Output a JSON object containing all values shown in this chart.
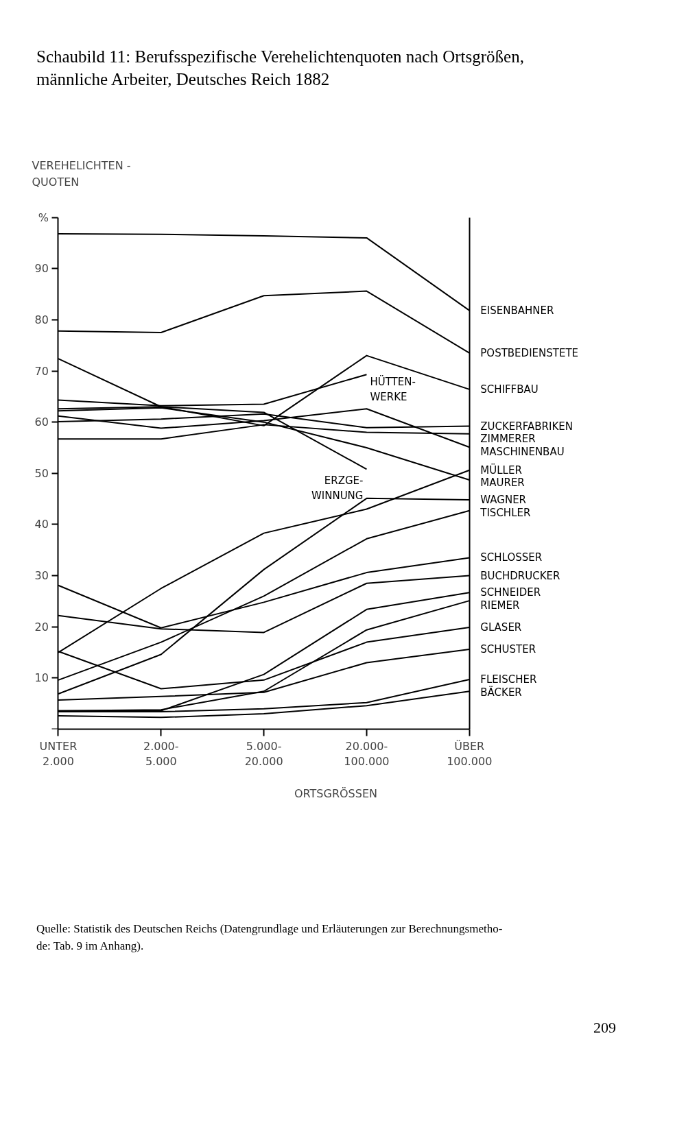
{
  "chart_data": {
    "type": "line",
    "title": "Schaubild 11: Berufsspezifische Verehelichtenquoten nach Ortsgrößen,\nmännliche Arbeiter, Deutsches Reich 1882",
    "xlabel": "ORTSGRÖSSEN",
    "ylabel": "VEREHELICHTEN -\nQUOTEN",
    "categories": [
      "UNTER\n2.000",
      "2.000-\n5.000",
      "5.000-\n20.000",
      "20.000-\n100.000",
      "ÜBER\n100.000"
    ],
    "ylim": [
      0,
      100
    ],
    "yticks": [
      {
        "value": 0,
        "label": null
      },
      10,
      20,
      30,
      40,
      50,
      60,
      70,
      80,
      90,
      {
        "value": 100,
        "label": "%"
      }
    ],
    "grid": false,
    "legend": false,
    "marker": "none",
    "line_style": "solid",
    "series": [
      {
        "name": "EISENBAHNER",
        "color": "#000000",
        "values": [
          96.8,
          96.7,
          96.4,
          96.0,
          81.8
        ]
      },
      {
        "name": "POSTBEDIENSTETE",
        "color": "#000000",
        "values": [
          77.8,
          77.5,
          84.7,
          85.6,
          73.5
        ]
      },
      {
        "name": "SCHIFFBAU",
        "color": "#000000",
        "values": [
          62.6,
          63.0,
          59.3,
          73.0,
          66.4
        ]
      },
      {
        "name": "HÜTTEN-\nWERKE",
        "color": "#000000",
        "values": [
          64.3,
          63.2,
          63.5,
          69.3,
          null
        ]
      },
      {
        "name": "ZUCKERFABRIKEN",
        "color": "#000000",
        "values": [
          60.1,
          60.6,
          61.6,
          58.9,
          59.2
        ]
      },
      {
        "name": "ZIMMERER",
        "color": "#000000",
        "values": [
          56.7,
          56.7,
          59.5,
          58.0,
          57.7
        ]
      },
      {
        "name": "MASCHINENBAU",
        "color": "#000000",
        "values": [
          61.2,
          58.8,
          60.3,
          62.6,
          55.1
        ]
      },
      {
        "name": "ERZGE-\nWINNUNG",
        "color": "#000000",
        "values": [
          72.4,
          63.0,
          61.9,
          50.8,
          null
        ]
      },
      {
        "name": "MÜLLER",
        "color": "#000000",
        "values": [
          15.0,
          27.5,
          38.3,
          43.0,
          50.6
        ]
      },
      {
        "name": "MAURER",
        "color": "#000000",
        "values": [
          62.2,
          62.8,
          60.0,
          55.0,
          48.7
        ]
      },
      {
        "name": "WAGNER",
        "color": "#000000",
        "values": [
          6.9,
          14.6,
          31.2,
          45.1,
          44.8
        ]
      },
      {
        "name": "TISCHLER",
        "color": "#000000",
        "values": [
          9.6,
          17.0,
          26.0,
          37.2,
          42.7
        ]
      },
      {
        "name": "SCHLOSSER",
        "color": "#000000",
        "values": [
          28.1,
          19.8,
          24.8,
          30.6,
          33.5
        ]
      },
      {
        "name": "BUCHDRUCKER",
        "color": "#000000",
        "values": [
          22.2,
          19.6,
          18.9,
          28.5,
          30.0
        ]
      },
      {
        "name": "SCHNEIDER",
        "color": "#000000",
        "values": [
          3.6,
          3.6,
          10.7,
          23.4,
          26.7
        ]
      },
      {
        "name": "RIEMER",
        "color": "#000000",
        "values": [
          3.6,
          3.8,
          7.4,
          19.4,
          25.1
        ]
      },
      {
        "name": "GLASER",
        "color": "#000000",
        "values": [
          15.2,
          7.9,
          9.6,
          17.0,
          19.9
        ]
      },
      {
        "name": "SCHUSTER",
        "color": "#000000",
        "values": [
          5.7,
          6.4,
          7.2,
          13.0,
          15.6
        ]
      },
      {
        "name": "FLEISCHER",
        "color": "#000000",
        "values": [
          3.4,
          3.4,
          4.0,
          5.2,
          9.7
        ]
      },
      {
        "name": "BÄCKER",
        "color": "#000000",
        "values": [
          2.6,
          2.3,
          3.0,
          4.6,
          7.4
        ]
      }
    ],
    "annotations": [
      "Quelle: Statistik des Deutschen Reichs (Datengrundlage und Erläuterungen zur Berechnungsmetho-\nde: Tab. 9 im Anhang).",
      "209"
    ]
  }
}
